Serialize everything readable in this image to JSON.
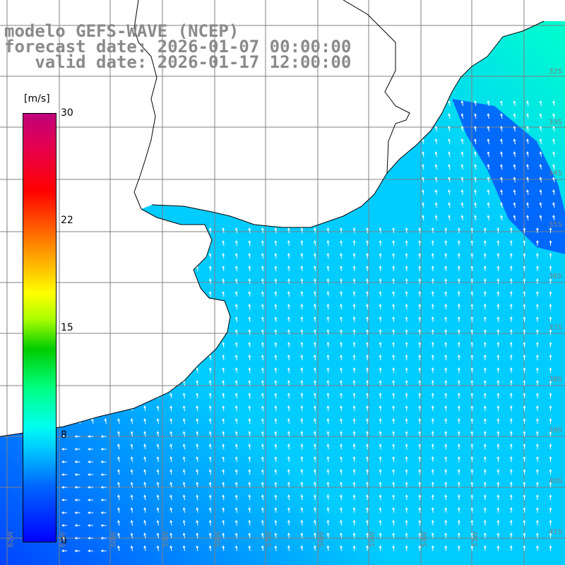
{
  "title": {
    "model": "modelo GEFS-WAVE (NCEP)",
    "forecast": "forecast date: 2026-01-07 00:00:00",
    "valid": "   valid date: 2026-01-17 12:00:00"
  },
  "colorbar": {
    "unit": "[m/s]",
    "ticks": [
      {
        "value": 30,
        "label": "30"
      },
      {
        "value": 22,
        "label": "22"
      },
      {
        "value": 15,
        "label": "15"
      },
      {
        "value": 8,
        "label": "8"
      },
      {
        "value": 0,
        "label": "0"
      }
    ],
    "min": 0,
    "max": 30
  },
  "map": {
    "variable": "wind speed and direction",
    "lat_labels": [
      "32S",
      "33S",
      "34S",
      "35S",
      "36S",
      "37S",
      "38S",
      "39S",
      "40S",
      "41S"
    ],
    "lon_labels": [
      "62W",
      "61W",
      "60W",
      "59W",
      "58W",
      "57W",
      "56W",
      "55W",
      "54W",
      "53W"
    ],
    "colors": {
      "land": "#ffffff",
      "grid": "#808080",
      "coast": "#000000",
      "arrows": "#ffffff",
      "sea_low": "#0044ff",
      "sea_mid": "#00ccff",
      "sea_high": "#00ffcc"
    }
  }
}
